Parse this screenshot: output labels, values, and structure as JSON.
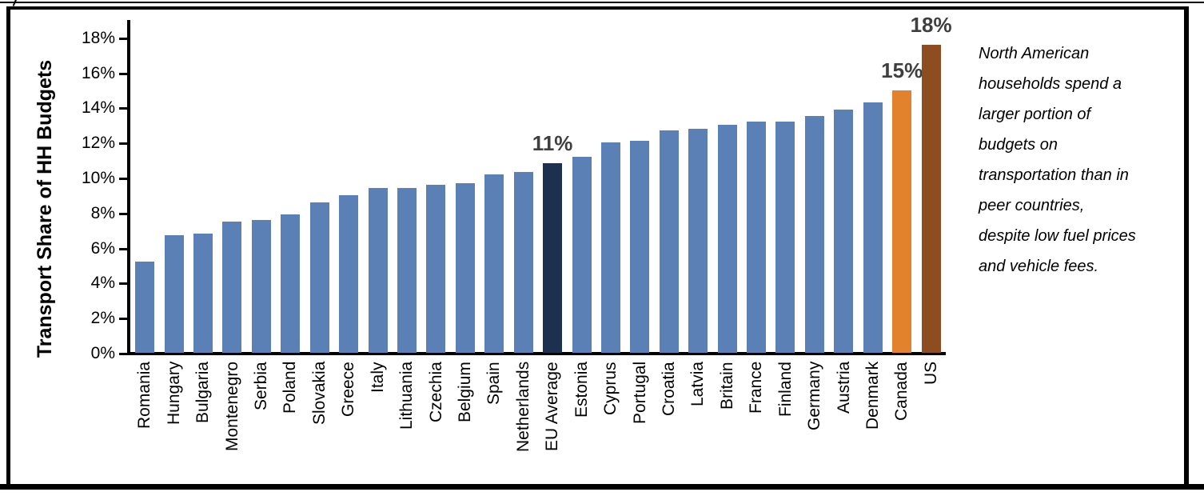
{
  "chart_data": {
    "type": "bar",
    "title": "",
    "xlabel": "",
    "ylabel": "Transport Share of HH Budgets",
    "ylim_percent": [
      0,
      18
    ],
    "y_tick_labels": [
      "0%",
      "2%",
      "4%",
      "6%",
      "8%",
      "10%",
      "12%",
      "14%",
      "16%",
      "18%"
    ],
    "grid": false,
    "legend": "none",
    "categories": [
      "Romania",
      "Hungary",
      "Bulgaria",
      "Montenegro",
      "Serbia",
      "Poland",
      "Slovakia",
      "Greece",
      "Italy",
      "Lithuania",
      "Czechia",
      "Belgium",
      "Spain",
      "Netherlands",
      "EU Average",
      "Estonia",
      "Cyprus",
      "Portugal",
      "Croatia",
      "Latvia",
      "Britain",
      "France",
      "Finland",
      "Germany",
      "Austria",
      "Denmark",
      "Canada",
      "US"
    ],
    "values_percent": [
      5.2,
      6.7,
      6.8,
      7.5,
      7.6,
      7.9,
      8.6,
      9.0,
      9.4,
      9.4,
      9.6,
      9.7,
      10.2,
      10.3,
      10.8,
      11.2,
      12.0,
      12.1,
      12.7,
      12.8,
      13.0,
      13.2,
      13.2,
      13.5,
      13.9,
      14.3,
      15.0,
      17.6
    ],
    "bar_color_default": "#5a80b5",
    "bar_color_overrides": {
      "EU Average": "#1e304f",
      "Canada": "#e2822d",
      "US": "#8d4d20"
    },
    "data_labels": {
      "EU Average": "11%",
      "Canada": "15%",
      "US": "18%"
    },
    "data_label_color": "#3f3f3f",
    "axis_color": "#000000"
  },
  "annotation": {
    "text": "North American households spend a larger portion of budgets on transportation than in peer countries, despite low fuel prices and vehicle fees."
  }
}
